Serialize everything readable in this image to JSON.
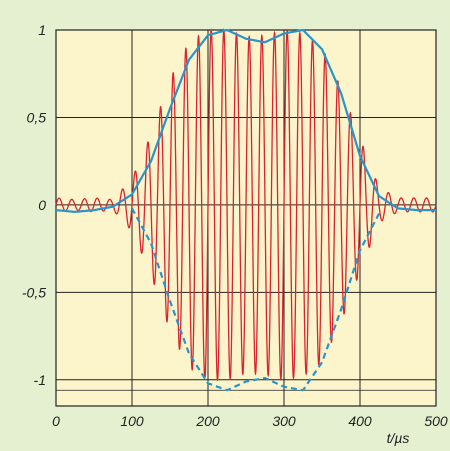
{
  "chart_data": {
    "type": "line",
    "xlabel": "t/µs",
    "ylabel": "",
    "xlim": [
      0,
      500
    ],
    "ylim": [
      -1.15,
      1.0
    ],
    "x_ticks": [
      0,
      100,
      200,
      300,
      400,
      500
    ],
    "x_tick_labels": [
      "0",
      "100",
      "200",
      "300",
      "400",
      "500"
    ],
    "y_ticks": [
      1,
      0.5,
      0,
      -0.5,
      -1
    ],
    "y_tick_labels": [
      "1",
      "0,5",
      "0",
      "-0,5",
      "-1"
    ],
    "y_extra_gridline": -1.06,
    "grid": true,
    "carrier_cycles": 30,
    "series": [
      {
        "role": "signal",
        "color": "#d8242c",
        "x": [
          0,
          25,
          50,
          75,
          100,
          125,
          150,
          175,
          200,
          225,
          250,
          275,
          300,
          325,
          350,
          375,
          400,
          425,
          450,
          475,
          500
        ],
        "envelope": [
          0.04,
          0.03,
          0.04,
          0.03,
          0.15,
          0.4,
          0.72,
          0.93,
          1.0,
          1.0,
          0.96,
          0.97,
          1.0,
          0.98,
          0.9,
          0.67,
          0.38,
          0.1,
          0.04,
          0.04,
          0.04
        ]
      },
      {
        "role": "upper-envelope",
        "color": "#2a95c8",
        "style": "solid",
        "x": [
          0,
          25,
          50,
          75,
          100,
          125,
          150,
          175,
          200,
          225,
          250,
          275,
          300,
          325,
          350,
          375,
          400,
          425,
          450,
          475,
          500
        ],
        "y": [
          -0.03,
          -0.04,
          -0.03,
          -0.01,
          0.06,
          0.25,
          0.55,
          0.83,
          0.97,
          1.0,
          0.95,
          0.93,
          0.98,
          1.0,
          0.89,
          0.64,
          0.28,
          0.05,
          -0.02,
          -0.03,
          -0.03
        ]
      },
      {
        "role": "lower-envelope",
        "color": "#2a95c8",
        "style": "dashed",
        "x": [
          100,
          125,
          150,
          175,
          200,
          225,
          250,
          275,
          300,
          325,
          350,
          375,
          400,
          425
        ],
        "y": [
          -0.02,
          -0.22,
          -0.55,
          -0.85,
          -1.02,
          -1.06,
          -1.01,
          -0.99,
          -1.04,
          -1.06,
          -0.9,
          -0.6,
          -0.26,
          -0.05
        ]
      }
    ]
  }
}
